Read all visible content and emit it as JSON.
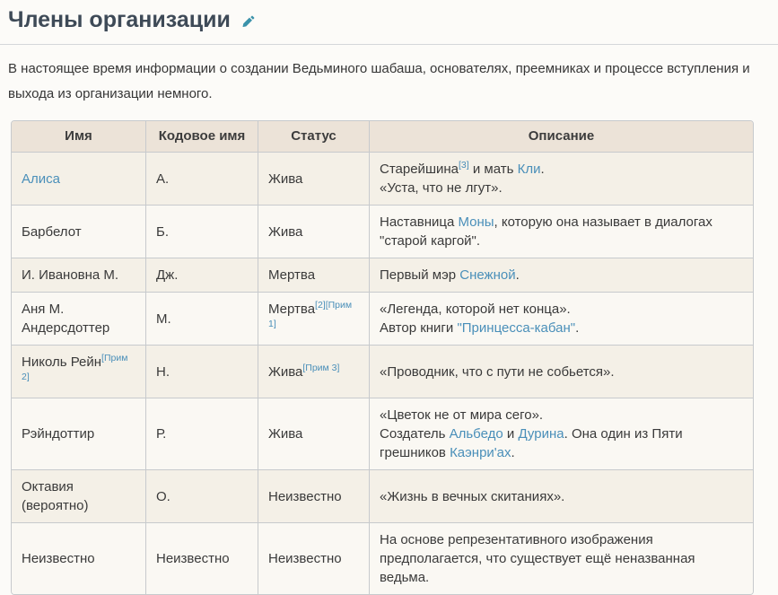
{
  "page": {
    "title": "Члены организации",
    "edit_icon": "pencil-edit-icon",
    "intro": "В настоящее время информации о создании Ведьминого шабаша, основателях, преемниках и процессе вступления и выхода из организации немного."
  },
  "colors": {
    "heading_text": "#3e4a57",
    "link": "#4a8fb9",
    "edit_icon": "#3b92aa",
    "table_header_bg": "#ece3d8",
    "row_odd_bg": "#f4f0e7",
    "row_even_bg": "#faf8f3",
    "table_border": "#c7cacd",
    "page_bg": "#fcfbf8"
  },
  "table": {
    "headers": [
      "Имя",
      "Кодовое имя",
      "Статус",
      "Описание"
    ],
    "rows": [
      {
        "name": [
          {
            "link": "Алиса"
          }
        ],
        "code": [
          {
            "text": "А."
          }
        ],
        "status": [
          {
            "text": "Жива"
          }
        ],
        "desc": [
          {
            "text": "Старейшина"
          },
          {
            "sup": "[3]"
          },
          {
            "text": " и мать "
          },
          {
            "link": "Кли"
          },
          {
            "text": "."
          },
          {
            "br": true
          },
          {
            "text": "«Уста, что не лгут»."
          }
        ]
      },
      {
        "name": [
          {
            "text": "Барбелот"
          }
        ],
        "code": [
          {
            "text": "Б."
          }
        ],
        "status": [
          {
            "text": "Жива"
          }
        ],
        "desc": [
          {
            "text": "Наставница "
          },
          {
            "link": "Моны"
          },
          {
            "text": ", которую она называет в диалогах \"старой каргой\"."
          }
        ]
      },
      {
        "name": [
          {
            "text": "И. Ивановна М."
          }
        ],
        "code": [
          {
            "text": "Дж."
          }
        ],
        "status": [
          {
            "text": "Мертва"
          }
        ],
        "desc": [
          {
            "text": "Первый мэр "
          },
          {
            "link": "Снежной"
          },
          {
            "text": "."
          }
        ]
      },
      {
        "name": [
          {
            "text": "Аня М. Андерсдоттер"
          }
        ],
        "code": [
          {
            "text": "М."
          }
        ],
        "status": [
          {
            "text": "Мертва"
          },
          {
            "sup": "[2]"
          },
          {
            "sup": "[Прим 1]"
          }
        ],
        "desc": [
          {
            "text": "«Легенда, которой нет конца»."
          },
          {
            "br": true
          },
          {
            "text": "Автор книги "
          },
          {
            "link": "\"Принцесса-кабан\""
          },
          {
            "text": "."
          }
        ]
      },
      {
        "name": [
          {
            "text": "Николь Рейн"
          },
          {
            "sup": "[Прим 2]"
          }
        ],
        "code": [
          {
            "text": "Н."
          }
        ],
        "status": [
          {
            "text": "Жива"
          },
          {
            "sup": "[Прим 3]"
          }
        ],
        "desc": [
          {
            "text": "«Проводник, что с пути не собьется»."
          }
        ]
      },
      {
        "name": [
          {
            "text": "Рэйндоттир"
          }
        ],
        "code": [
          {
            "text": "Р."
          }
        ],
        "status": [
          {
            "text": "Жива"
          }
        ],
        "desc": [
          {
            "text": "«Цветок не от мира сего»."
          },
          {
            "br": true
          },
          {
            "text": "Создатель "
          },
          {
            "link": "Альбедо"
          },
          {
            "text": " и "
          },
          {
            "link": "Дурина"
          },
          {
            "text": ". Она один из Пяти грешников "
          },
          {
            "link": "Каэнри'ах"
          },
          {
            "text": "."
          }
        ]
      },
      {
        "name": [
          {
            "text": "Октавия (вероятно)"
          }
        ],
        "code": [
          {
            "text": "О."
          }
        ],
        "status": [
          {
            "text": "Неизвестно"
          }
        ],
        "desc": [
          {
            "text": "«Жизнь в вечных скитаниях»."
          }
        ]
      },
      {
        "name": [
          {
            "text": "Неизвестно"
          }
        ],
        "code": [
          {
            "text": "Неизвестно"
          }
        ],
        "status": [
          {
            "text": "Неизвестно"
          }
        ],
        "desc": [
          {
            "text": "На основе репрезентативного изображения предполагается, что существует ещё неназванная ведьма."
          }
        ]
      }
    ]
  }
}
